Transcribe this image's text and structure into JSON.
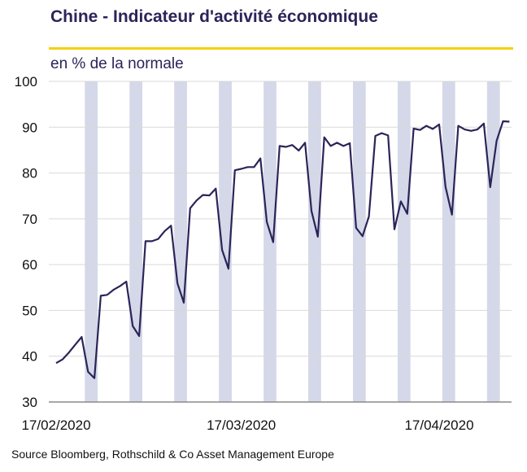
{
  "chart_data": {
    "type": "line",
    "title": "Chine - Indicateur d'activité économique",
    "subtitle": "en % de la normale",
    "ylim": [
      30,
      100
    ],
    "yticks": [
      30,
      40,
      50,
      60,
      70,
      80,
      90,
      100
    ],
    "x_tick_labels": [
      "17/02/2020",
      "17/03/2020",
      "17/04/2020"
    ],
    "x_start": "2020-02-17",
    "grid": "horizontal",
    "weekend_band_color": "#d4d8e8",
    "line_color": "#2b2458",
    "series": [
      {
        "values": [
          38.5,
          39.3,
          40.8,
          42.5,
          44.2,
          36.6,
          35.2,
          53.2,
          53.4,
          54.5,
          55.3,
          56.3,
          46.6,
          44.4,
          65.1,
          65.1,
          65.6,
          67.3,
          68.5,
          55.9,
          51.7,
          72.3,
          74.0,
          75.2,
          75.1,
          76.6,
          63.2,
          59.1,
          80.6,
          80.9,
          81.3,
          81.3,
          83.2,
          69.3,
          64.9,
          85.9,
          85.7,
          86.1,
          84.9,
          86.6,
          71.7,
          66.1,
          87.8,
          85.9,
          86.6,
          85.9,
          86.5,
          68.0,
          66.2,
          70.5,
          88.1,
          88.7,
          88.2,
          67.7,
          73.8,
          71.1,
          89.7,
          89.4,
          90.3,
          89.6,
          90.6,
          77.0,
          70.9,
          90.3,
          89.5,
          89.2,
          89.5,
          90.8,
          76.9,
          87.0,
          91.3,
          91.2
        ]
      }
    ],
    "weekend_bands": [
      [
        "2020-02-22",
        "2020-02-23"
      ],
      [
        "2020-02-29",
        "2020-03-01"
      ],
      [
        "2020-03-07",
        "2020-03-08"
      ],
      [
        "2020-03-14",
        "2020-03-15"
      ],
      [
        "2020-03-21",
        "2020-03-22"
      ],
      [
        "2020-03-28",
        "2020-03-29"
      ],
      [
        "2020-04-04",
        "2020-04-05"
      ],
      [
        "2020-04-11",
        "2020-04-12"
      ],
      [
        "2020-04-18",
        "2020-04-19"
      ],
      [
        "2020-04-25",
        "2020-04-26"
      ]
    ]
  },
  "source": "Source Bloomberg, Rothschild & Co Asset Management  Europe"
}
